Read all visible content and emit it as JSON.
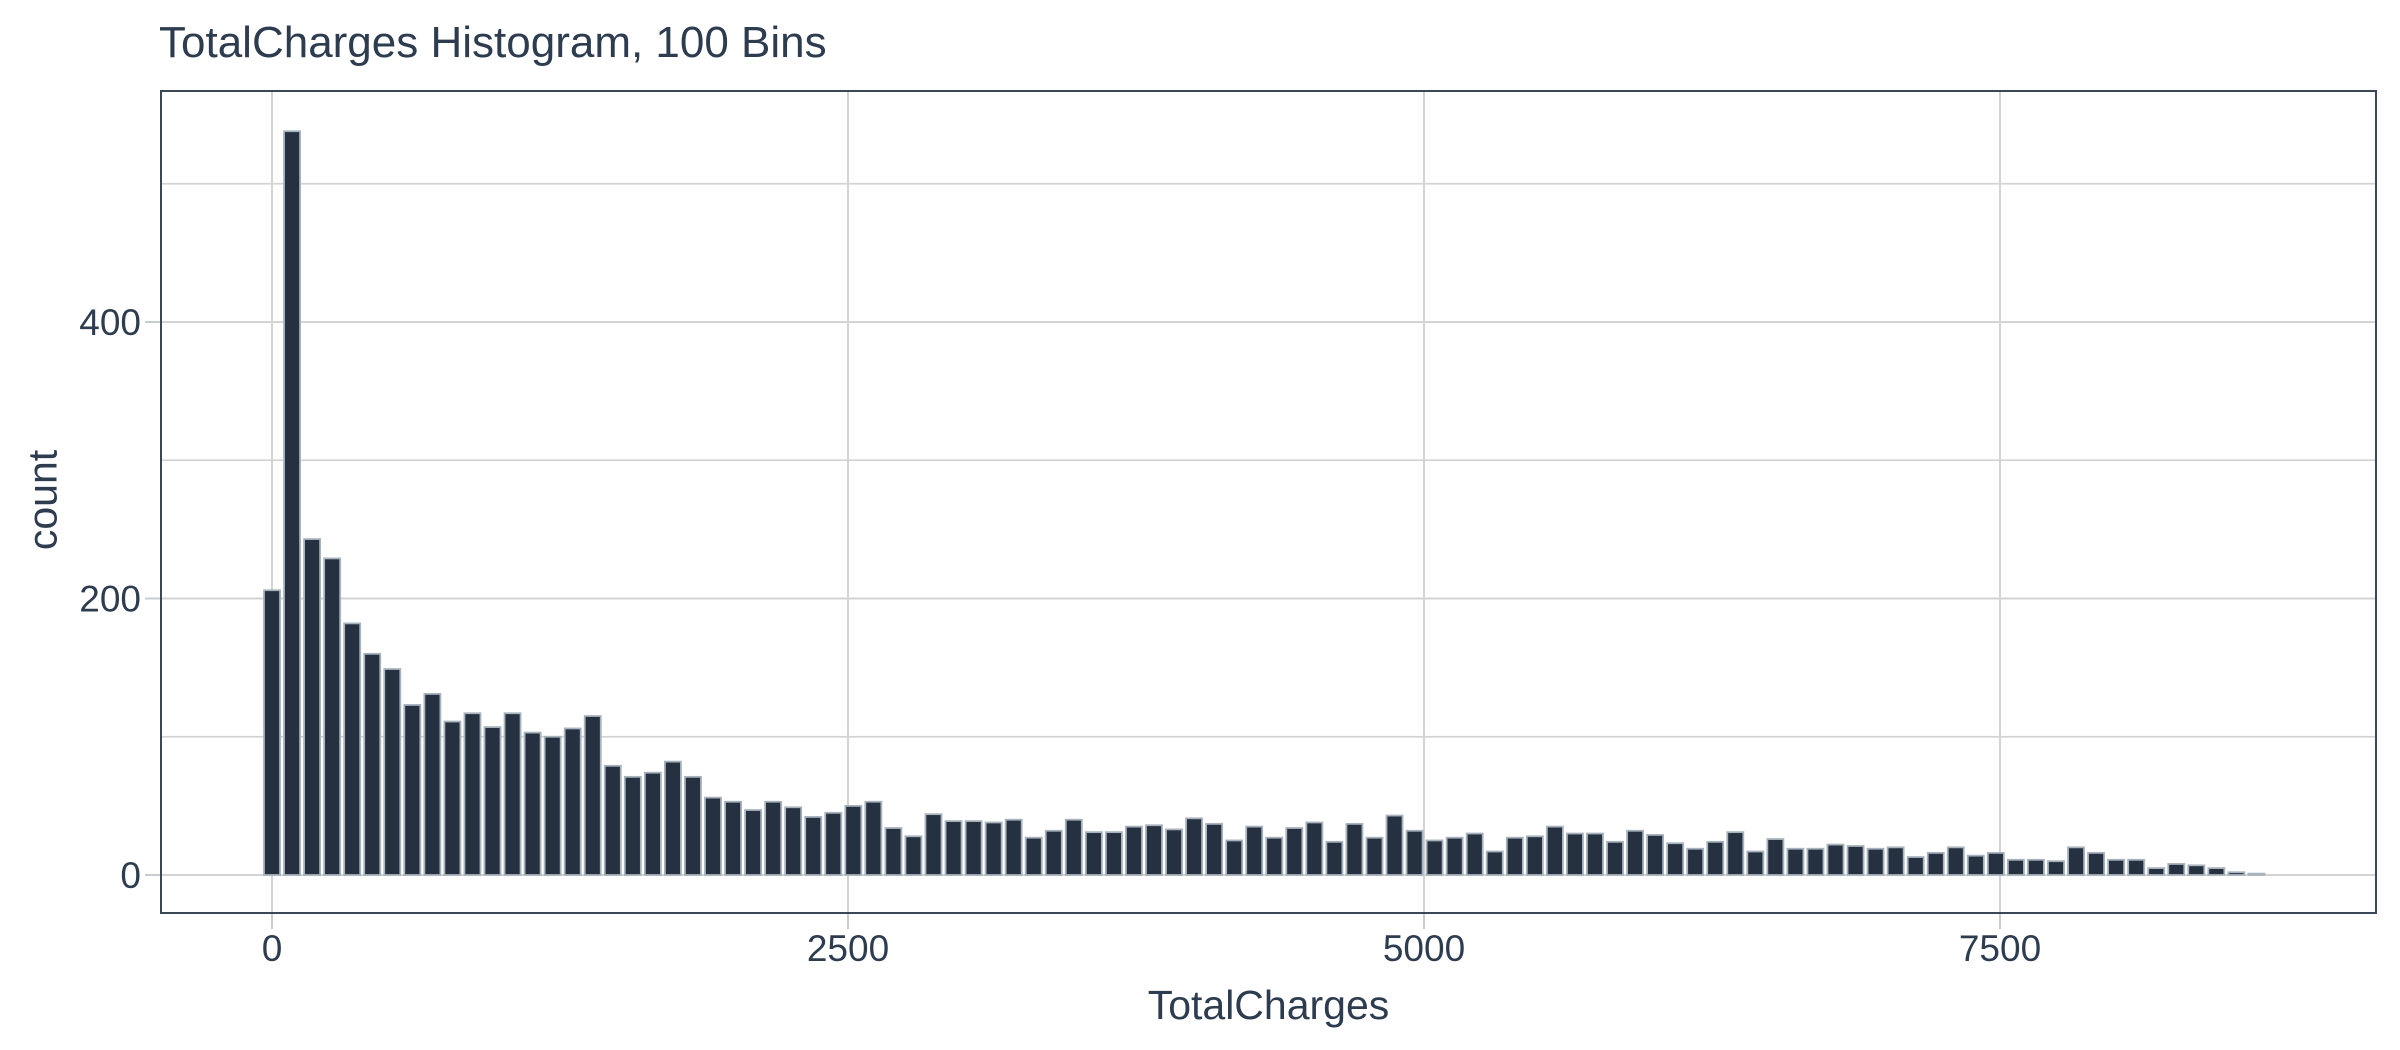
{
  "chart": {
    "title": "TotalCharges Histogram, 100 Bins",
    "xlabel": "TotalCharges",
    "ylabel": "count"
  },
  "chart_data": {
    "type": "bar",
    "subtype": "histogram",
    "title": "TotalCharges Histogram, 100 Bins",
    "xlabel": "TotalCharges",
    "ylabel": "count",
    "bin_start": 0,
    "bin_width": 87,
    "counts": [
      206,
      538,
      243,
      229,
      182,
      160,
      149,
      123,
      131,
      111,
      117,
      107,
      117,
      103,
      100,
      106,
      115,
      79,
      71,
      74,
      82,
      71,
      56,
      53,
      47,
      53,
      49,
      42,
      45,
      50,
      53,
      34,
      28,
      44,
      39,
      39,
      38,
      40,
      27,
      32,
      40,
      31,
      31,
      35,
      36,
      33,
      41,
      37,
      25,
      35,
      27,
      34,
      38,
      24,
      37,
      27,
      43,
      32,
      25,
      27,
      30,
      17,
      27,
      28,
      35,
      30,
      30,
      24,
      32,
      29,
      23,
      19,
      24,
      31,
      17,
      26,
      19,
      19,
      22,
      21,
      19,
      20,
      13,
      16,
      20,
      14,
      16,
      11,
      11,
      10,
      20,
      16,
      11,
      11,
      5,
      8,
      7,
      5,
      2,
      1
    ],
    "x_ticks": [
      {
        "value": 0,
        "label": "0"
      },
      {
        "value": 2500,
        "label": "2500"
      },
      {
        "value": 5000,
        "label": "5000"
      },
      {
        "value": 7500,
        "label": "7500"
      }
    ],
    "y_ticks": [
      {
        "value": 0,
        "label": "0"
      },
      {
        "value": 200,
        "label": "200"
      },
      {
        "value": 400,
        "label": "400"
      }
    ],
    "y_minor_gridlines": [
      100,
      300,
      500
    ],
    "ylim": [
      0,
      566
    ],
    "grid": true,
    "legend": "none",
    "colors": {
      "bar_fill": "#253140",
      "bar_stroke": "#a9b3bd",
      "gridline": "#d3d3d3",
      "tick_mark": "#c9cdd2",
      "panel_border": "#3a4757",
      "text": "#2e3c50",
      "background": "#ffffff"
    }
  }
}
